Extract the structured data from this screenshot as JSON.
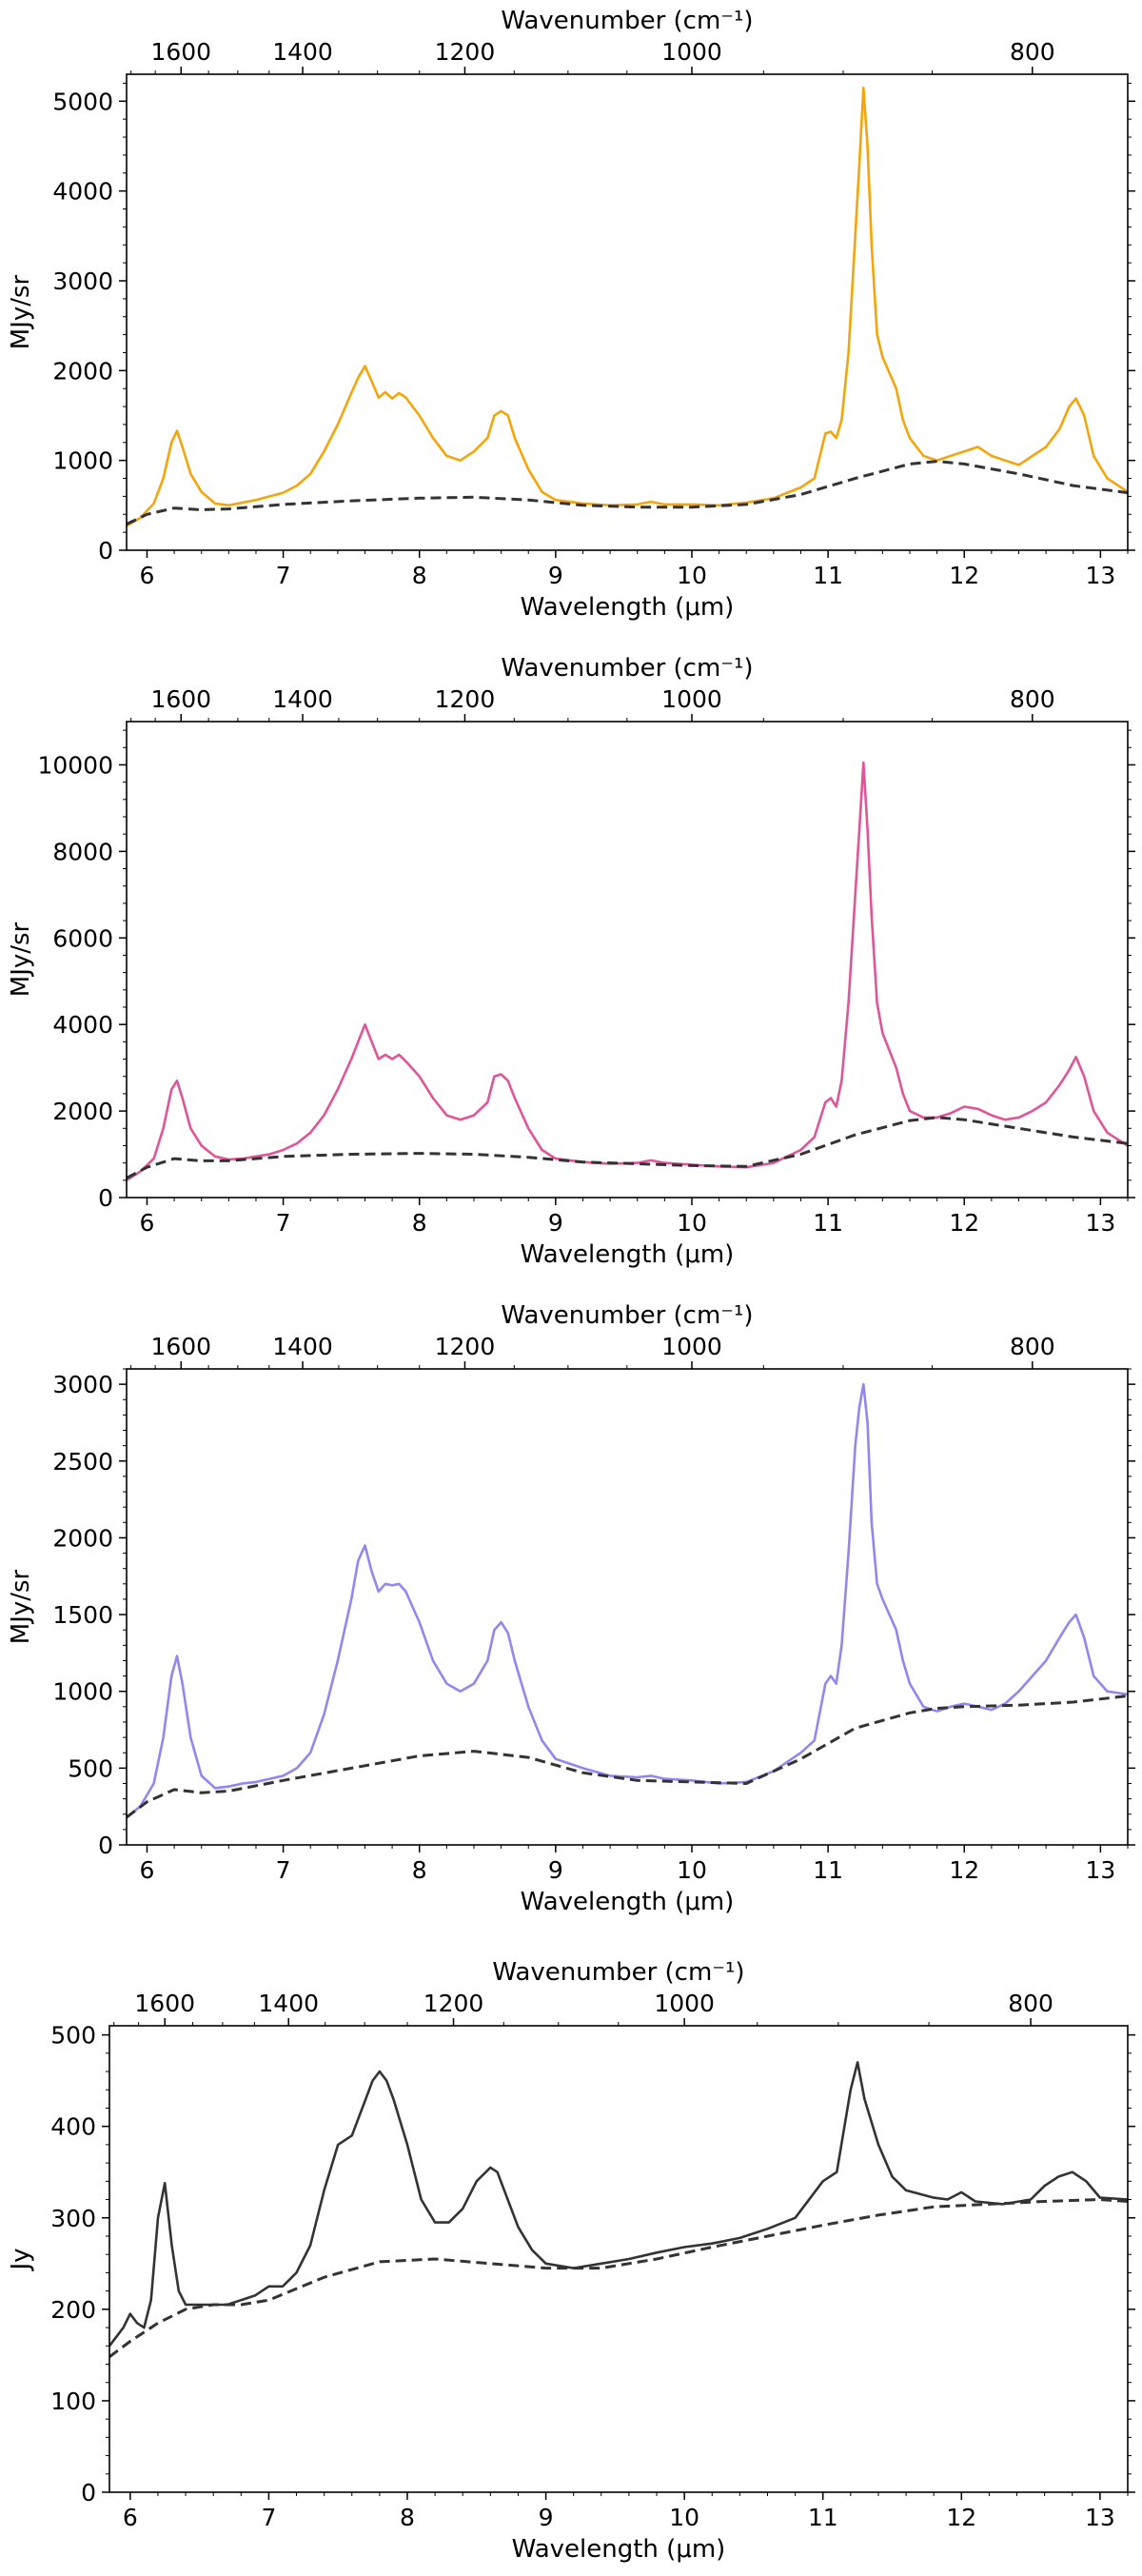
{
  "chart_data": [
    {
      "type": "line",
      "xlabel": "Wavelength (μm)",
      "top_xlabel": "Wavenumber (cm⁻¹)",
      "ylabel": "MJy/sr",
      "xlim": [
        5.85,
        13.2
      ],
      "ylim": [
        0,
        5300
      ],
      "xticks": [
        6,
        7,
        8,
        9,
        10,
        11,
        12,
        13
      ],
      "yticks": [
        0,
        1000,
        2000,
        3000,
        4000,
        5000
      ],
      "top_ticks": [
        1600,
        1400,
        1200,
        1000,
        800
      ],
      "grid": false,
      "series": [
        {
          "style": "solid",
          "color": "#f5a50a",
          "x": [
            5.85,
            5.95,
            6.05,
            6.12,
            6.18,
            6.22,
            6.26,
            6.32,
            6.4,
            6.5,
            6.6,
            6.7,
            6.8,
            6.9,
            7.0,
            7.1,
            7.2,
            7.3,
            7.4,
            7.5,
            7.55,
            7.6,
            7.65,
            7.7,
            7.75,
            7.8,
            7.85,
            7.9,
            8.0,
            8.1,
            8.2,
            8.3,
            8.4,
            8.5,
            8.55,
            8.6,
            8.65,
            8.7,
            8.8,
            8.9,
            9.0,
            9.2,
            9.4,
            9.6,
            9.7,
            9.8,
            10.0,
            10.2,
            10.4,
            10.6,
            10.8,
            10.9,
            10.98,
            11.02,
            11.06,
            11.1,
            11.15,
            11.2,
            11.23,
            11.26,
            11.29,
            11.32,
            11.36,
            11.4,
            11.5,
            11.55,
            11.6,
            11.7,
            11.8,
            11.9,
            12.0,
            12.1,
            12.2,
            12.3,
            12.4,
            12.5,
            12.6,
            12.7,
            12.77,
            12.82,
            12.88,
            12.95,
            13.05,
            13.2
          ],
          "y": [
            270,
            360,
            520,
            800,
            1200,
            1330,
            1150,
            850,
            650,
            520,
            500,
            530,
            560,
            600,
            640,
            720,
            850,
            1100,
            1400,
            1750,
            1920,
            2050,
            1880,
            1700,
            1760,
            1690,
            1750,
            1700,
            1500,
            1250,
            1050,
            1000,
            1100,
            1250,
            1500,
            1550,
            1500,
            1250,
            900,
            650,
            560,
            520,
            500,
            510,
            540,
            510,
            510,
            500,
            530,
            580,
            700,
            800,
            1300,
            1320,
            1250,
            1450,
            2200,
            3500,
            4300,
            5150,
            4500,
            3400,
            2400,
            2150,
            1800,
            1450,
            1250,
            1050,
            1000,
            1050,
            1100,
            1150,
            1050,
            1000,
            950,
            1050,
            1150,
            1350,
            1600,
            1690,
            1500,
            1050,
            800,
            650
          ]
        },
        {
          "style": "dashed",
          "color": "#333333",
          "x": [
            5.85,
            6.0,
            6.2,
            6.4,
            6.6,
            7.0,
            7.5,
            8.0,
            8.4,
            8.8,
            9.2,
            9.6,
            10.0,
            10.4,
            10.8,
            11.2,
            11.6,
            11.8,
            12.0,
            12.4,
            12.8,
            13.2
          ],
          "y": [
            290,
            400,
            470,
            450,
            460,
            510,
            550,
            580,
            590,
            560,
            500,
            480,
            480,
            510,
            620,
            800,
            960,
            990,
            960,
            850,
            720,
            640
          ]
        }
      ]
    },
    {
      "type": "line",
      "xlabel": "Wavelength (μm)",
      "top_xlabel": "Wavenumber (cm⁻¹)",
      "ylabel": "MJy/sr",
      "xlim": [
        5.85,
        13.2
      ],
      "ylim": [
        0,
        11000
      ],
      "xticks": [
        6,
        7,
        8,
        9,
        10,
        11,
        12,
        13
      ],
      "yticks": [
        0,
        2000,
        4000,
        6000,
        8000,
        10000
      ],
      "top_ticks": [
        1600,
        1400,
        1200,
        1000,
        800
      ],
      "grid": false,
      "series": [
        {
          "style": "solid",
          "color": "#e0559a",
          "x": [
            5.85,
            5.95,
            6.05,
            6.12,
            6.18,
            6.22,
            6.26,
            6.32,
            6.4,
            6.5,
            6.6,
            6.7,
            6.8,
            6.9,
            7.0,
            7.1,
            7.2,
            7.3,
            7.4,
            7.5,
            7.55,
            7.6,
            7.65,
            7.7,
            7.75,
            7.8,
            7.85,
            7.9,
            8.0,
            8.1,
            8.2,
            8.3,
            8.4,
            8.5,
            8.55,
            8.6,
            8.65,
            8.7,
            8.8,
            8.9,
            9.0,
            9.2,
            9.4,
            9.6,
            9.7,
            9.8,
            10.0,
            10.2,
            10.4,
            10.6,
            10.8,
            10.9,
            10.98,
            11.02,
            11.06,
            11.1,
            11.15,
            11.2,
            11.23,
            11.26,
            11.29,
            11.32,
            11.36,
            11.4,
            11.5,
            11.55,
            11.6,
            11.7,
            11.8,
            11.9,
            12.0,
            12.1,
            12.2,
            12.3,
            12.4,
            12.5,
            12.6,
            12.7,
            12.77,
            12.82,
            12.88,
            12.95,
            13.05,
            13.2
          ],
          "y": [
            400,
            600,
            900,
            1600,
            2500,
            2700,
            2300,
            1600,
            1200,
            950,
            880,
            900,
            950,
            1000,
            1100,
            1250,
            1500,
            1900,
            2500,
            3200,
            3600,
            4000,
            3600,
            3200,
            3300,
            3200,
            3300,
            3150,
            2800,
            2300,
            1900,
            1800,
            1900,
            2200,
            2800,
            2850,
            2700,
            2300,
            1600,
            1100,
            900,
            820,
            780,
            800,
            860,
            800,
            760,
            720,
            700,
            800,
            1100,
            1400,
            2200,
            2300,
            2100,
            2700,
            4500,
            7000,
            8500,
            10050,
            8500,
            6500,
            4500,
            3800,
            3000,
            2400,
            2000,
            1850,
            1850,
            1950,
            2100,
            2050,
            1900,
            1800,
            1850,
            2000,
            2200,
            2600,
            2950,
            3250,
            2800,
            2000,
            1500,
            1200
          ]
        },
        {
          "style": "dashed",
          "color": "#333333",
          "x": [
            5.85,
            6.0,
            6.2,
            6.4,
            6.6,
            7.0,
            7.5,
            8.0,
            8.4,
            8.8,
            9.2,
            9.6,
            10.0,
            10.4,
            10.8,
            11.2,
            11.6,
            11.8,
            12.0,
            12.4,
            12.8,
            13.2
          ],
          "y": [
            450,
            700,
            900,
            850,
            850,
            950,
            1000,
            1020,
            1000,
            930,
            820,
            780,
            740,
            720,
            1000,
            1450,
            1780,
            1850,
            1800,
            1600,
            1400,
            1250
          ]
        }
      ]
    },
    {
      "type": "line",
      "xlabel": "Wavelength (μm)",
      "top_xlabel": "Wavenumber (cm⁻¹)",
      "ylabel": "MJy/sr",
      "xlim": [
        5.85,
        13.2
      ],
      "ylim": [
        0,
        3100
      ],
      "xticks": [
        6,
        7,
        8,
        9,
        10,
        11,
        12,
        13
      ],
      "yticks": [
        0,
        500,
        1000,
        1500,
        2000,
        2500,
        3000
      ],
      "top_ticks": [
        1600,
        1400,
        1200,
        1000,
        800
      ],
      "grid": false,
      "series": [
        {
          "style": "solid",
          "color": "#9485f0",
          "x": [
            5.85,
            5.95,
            6.05,
            6.12,
            6.18,
            6.22,
            6.26,
            6.32,
            6.4,
            6.5,
            6.6,
            6.7,
            6.8,
            6.9,
            7.0,
            7.1,
            7.2,
            7.3,
            7.4,
            7.5,
            7.55,
            7.6,
            7.65,
            7.7,
            7.75,
            7.8,
            7.85,
            7.9,
            8.0,
            8.1,
            8.2,
            8.3,
            8.4,
            8.5,
            8.55,
            8.6,
            8.65,
            8.7,
            8.8,
            8.9,
            9.0,
            9.2,
            9.4,
            9.6,
            9.7,
            9.8,
            10.0,
            10.2,
            10.4,
            10.6,
            10.8,
            10.9,
            10.98,
            11.02,
            11.06,
            11.1,
            11.15,
            11.2,
            11.23,
            11.26,
            11.29,
            11.32,
            11.36,
            11.4,
            11.5,
            11.55,
            11.6,
            11.7,
            11.8,
            11.9,
            12.0,
            12.1,
            12.2,
            12.3,
            12.4,
            12.5,
            12.6,
            12.7,
            12.77,
            12.82,
            12.88,
            12.95,
            13.05,
            13.2
          ],
          "y": [
            180,
            250,
            400,
            700,
            1100,
            1230,
            1050,
            700,
            450,
            370,
            380,
            400,
            410,
            430,
            450,
            500,
            600,
            850,
            1200,
            1600,
            1850,
            1950,
            1780,
            1650,
            1700,
            1690,
            1700,
            1650,
            1450,
            1200,
            1050,
            1000,
            1050,
            1200,
            1400,
            1450,
            1380,
            1200,
            900,
            680,
            560,
            500,
            450,
            440,
            450,
            430,
            420,
            400,
            410,
            480,
            600,
            680,
            1050,
            1100,
            1050,
            1300,
            1900,
            2600,
            2850,
            3000,
            2750,
            2100,
            1700,
            1600,
            1400,
            1200,
            1050,
            900,
            870,
            900,
            920,
            900,
            880,
            920,
            1000,
            1100,
            1200,
            1350,
            1450,
            1500,
            1350,
            1100,
            1000,
            980
          ]
        },
        {
          "style": "dashed",
          "color": "#333333",
          "x": [
            5.85,
            6.0,
            6.2,
            6.4,
            6.6,
            7.0,
            7.5,
            8.0,
            8.4,
            8.8,
            9.2,
            9.6,
            10.0,
            10.4,
            10.8,
            11.2,
            11.6,
            11.8,
            12.0,
            12.4,
            12.8,
            13.2
          ],
          "y": [
            180,
            280,
            360,
            340,
            350,
            420,
            500,
            580,
            610,
            570,
            470,
            420,
            410,
            400,
            560,
            760,
            860,
            890,
            900,
            910,
            930,
            970
          ]
        }
      ]
    },
    {
      "type": "line",
      "xlabel": "Wavelength (μm)",
      "top_xlabel": "Wavenumber (cm⁻¹)",
      "ylabel": "Jy",
      "xlim": [
        5.85,
        13.2
      ],
      "ylim": [
        0,
        510
      ],
      "xticks": [
        6,
        7,
        8,
        9,
        10,
        11,
        12,
        13
      ],
      "yticks": [
        0,
        100,
        200,
        300,
        400,
        500
      ],
      "top_ticks": [
        1600,
        1400,
        1200,
        1000,
        800
      ],
      "grid": false,
      "series": [
        {
          "style": "solid",
          "color": "#333333",
          "x": [
            5.85,
            5.95,
            6.0,
            6.05,
            6.1,
            6.15,
            6.2,
            6.25,
            6.3,
            6.35,
            6.4,
            6.5,
            6.6,
            6.7,
            6.8,
            6.9,
            7.0,
            7.1,
            7.2,
            7.3,
            7.4,
            7.5,
            7.6,
            7.7,
            7.75,
            7.8,
            7.85,
            7.9,
            8.0,
            8.1,
            8.2,
            8.3,
            8.4,
            8.5,
            8.6,
            8.65,
            8.7,
            8.8,
            8.9,
            9.0,
            9.2,
            9.4,
            9.6,
            9.8,
            10.0,
            10.2,
            10.4,
            10.6,
            10.8,
            11.0,
            11.1,
            11.2,
            11.25,
            11.3,
            11.4,
            11.5,
            11.6,
            11.8,
            11.9,
            12.0,
            12.1,
            12.3,
            12.5,
            12.6,
            12.7,
            12.8,
            12.9,
            13.0,
            13.2
          ],
          "y": [
            160,
            180,
            195,
            185,
            180,
            210,
            300,
            338,
            270,
            220,
            205,
            205,
            205,
            205,
            210,
            215,
            225,
            225,
            240,
            270,
            330,
            380,
            390,
            430,
            450,
            460,
            450,
            430,
            380,
            320,
            295,
            295,
            310,
            340,
            355,
            350,
            330,
            290,
            265,
            250,
            245,
            250,
            255,
            262,
            268,
            272,
            278,
            288,
            300,
            340,
            350,
            440,
            470,
            430,
            380,
            345,
            330,
            322,
            320,
            328,
            318,
            315,
            320,
            335,
            345,
            350,
            340,
            322,
            320
          ]
        },
        {
          "style": "dashed",
          "color": "#333333",
          "x": [
            5.85,
            6.0,
            6.2,
            6.4,
            6.6,
            6.8,
            7.0,
            7.4,
            7.8,
            8.2,
            8.6,
            9.0,
            9.4,
            9.8,
            10.2,
            10.6,
            11.0,
            11.4,
            11.8,
            12.2,
            12.6,
            13.0,
            13.2
          ],
          "y": [
            148,
            165,
            185,
            200,
            205,
            205,
            210,
            235,
            252,
            255,
            250,
            245,
            245,
            255,
            268,
            280,
            292,
            303,
            312,
            315,
            318,
            320,
            318
          ]
        }
      ]
    }
  ]
}
